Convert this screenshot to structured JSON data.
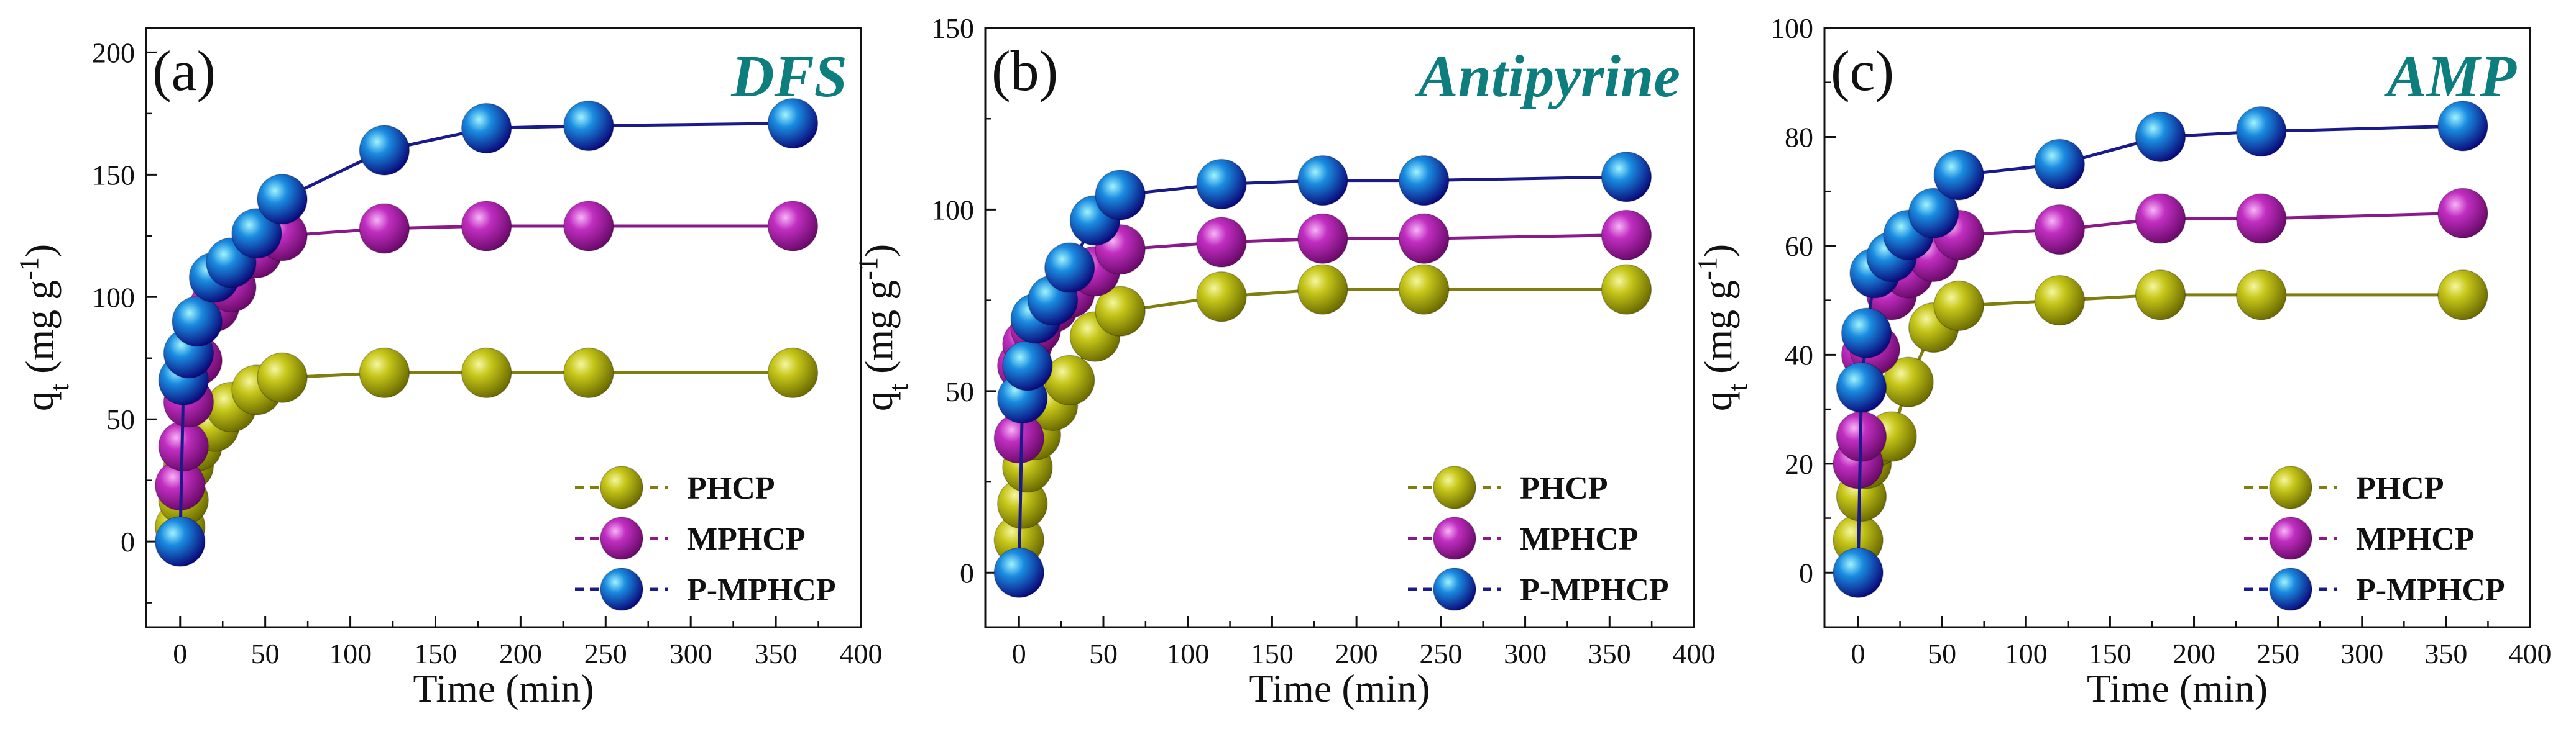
{
  "chart_data": [
    {
      "type": "line",
      "panel_label": "(a)",
      "title": "DFS",
      "xlabel": "Time (min)",
      "ylabel_main": "q",
      "ylabel_sub": "t",
      "ylabel_unit": " (mg g",
      "ylabel_exp": "-1",
      "ylabel_close": ")",
      "xlim": [
        -20,
        400
      ],
      "ylim": [
        -35,
        210
      ],
      "xticks": [
        0,
        50,
        100,
        150,
        200,
        250,
        300,
        350,
        400
      ],
      "yticks": [
        0,
        50,
        100,
        150,
        200
      ],
      "legend_position": "bottom-right",
      "series": [
        {
          "name": "PHCP",
          "color": "#a8a800",
          "line_color": "#7f7f10",
          "x": [
            0,
            2,
            5,
            10,
            20,
            30,
            45,
            60,
            120,
            180,
            240,
            360
          ],
          "y": [
            6,
            17,
            31,
            39,
            47,
            55,
            62,
            67,
            69,
            69,
            69,
            69
          ]
        },
        {
          "name": "MPHCP",
          "color": "#b020b0",
          "line_color": "#8a1a8a",
          "x": [
            0,
            2,
            5,
            10,
            20,
            30,
            45,
            60,
            120,
            180,
            240,
            360
          ],
          "y": [
            23,
            39,
            57,
            74,
            96,
            104,
            118,
            125,
            128,
            129,
            129,
            129
          ]
        },
        {
          "name": "P-MPHCP",
          "color": "#1a2aa8",
          "line_color": "#1a1a8a",
          "x": [
            0,
            2,
            5,
            10,
            20,
            30,
            45,
            60,
            120,
            180,
            240,
            360
          ],
          "y": [
            0,
            66,
            77,
            90,
            108,
            114,
            126,
            140,
            160,
            169,
            170,
            171
          ]
        }
      ]
    },
    {
      "type": "line",
      "panel_label": "(b)",
      "title": "Antipyrine",
      "xlabel": "Time (min)",
      "ylabel_main": "q",
      "ylabel_sub": "t",
      "ylabel_unit": " (mg g",
      "ylabel_exp": "-1",
      "ylabel_close": ")",
      "xlim": [
        -20,
        400
      ],
      "ylim": [
        -15,
        150
      ],
      "xticks": [
        0,
        50,
        100,
        150,
        200,
        250,
        300,
        350,
        400
      ],
      "yticks": [
        0,
        50,
        100,
        150
      ],
      "legend_position": "bottom-right",
      "series": [
        {
          "name": "PHCP",
          "color": "#a8a800",
          "line_color": "#7f7f10",
          "x": [
            0,
            2,
            5,
            10,
            20,
            30,
            45,
            60,
            120,
            180,
            240,
            360
          ],
          "y": [
            9,
            19,
            29,
            38,
            46,
            53,
            65,
            72,
            76,
            78,
            78,
            78
          ]
        },
        {
          "name": "MPHCP",
          "color": "#b020b0",
          "line_color": "#8a1a8a",
          "x": [
            0,
            2,
            5,
            10,
            20,
            30,
            45,
            60,
            120,
            180,
            240,
            360
          ],
          "y": [
            37,
            57,
            63,
            67,
            73,
            77,
            83,
            89,
            91,
            92,
            92,
            93
          ]
        },
        {
          "name": "P-MPHCP",
          "color": "#1a2aa8",
          "line_color": "#1a1a8a",
          "x": [
            0,
            2,
            5,
            10,
            20,
            30,
            45,
            60,
            120,
            180,
            240,
            360
          ],
          "y": [
            0,
            48,
            57,
            70,
            75,
            84,
            97,
            104,
            107,
            108,
            108,
            109
          ]
        }
      ]
    },
    {
      "type": "line",
      "panel_label": "(c)",
      "title": "AMP",
      "xlabel": "Time (min)",
      "ylabel_main": "q",
      "ylabel_sub": "t",
      "ylabel_unit": " (mg g",
      "ylabel_exp": "-1",
      "ylabel_close": ")",
      "xlim": [
        -20,
        400
      ],
      "ylim": [
        -10,
        100
      ],
      "xticks": [
        0,
        50,
        100,
        150,
        200,
        250,
        300,
        350,
        400
      ],
      "yticks": [
        0,
        20,
        40,
        60,
        80,
        100
      ],
      "legend_position": "bottom-right",
      "series": [
        {
          "name": "PHCP",
          "color": "#a8a800",
          "line_color": "#7f7f10",
          "x": [
            0,
            2,
            5,
            10,
            20,
            30,
            45,
            60,
            120,
            180,
            240,
            360
          ],
          "y": [
            6,
            14,
            20,
            24,
            25,
            35,
            45,
            49,
            50,
            51,
            51,
            51
          ]
        },
        {
          "name": "MPHCP",
          "color": "#b020b0",
          "line_color": "#8a1a8a",
          "x": [
            0,
            2,
            5,
            10,
            20,
            30,
            45,
            60,
            120,
            180,
            240,
            360
          ],
          "y": [
            20,
            25,
            40,
            41,
            51,
            55,
            58,
            62,
            63,
            65,
            65,
            66
          ]
        },
        {
          "name": "P-MPHCP",
          "color": "#1a2aa8",
          "line_color": "#1a1a8a",
          "x": [
            0,
            2,
            5,
            10,
            20,
            30,
            45,
            60,
            120,
            180,
            240,
            360
          ],
          "y": [
            0,
            34,
            44,
            55,
            58,
            62,
            66,
            73,
            75,
            80,
            81,
            82
          ]
        }
      ]
    }
  ]
}
